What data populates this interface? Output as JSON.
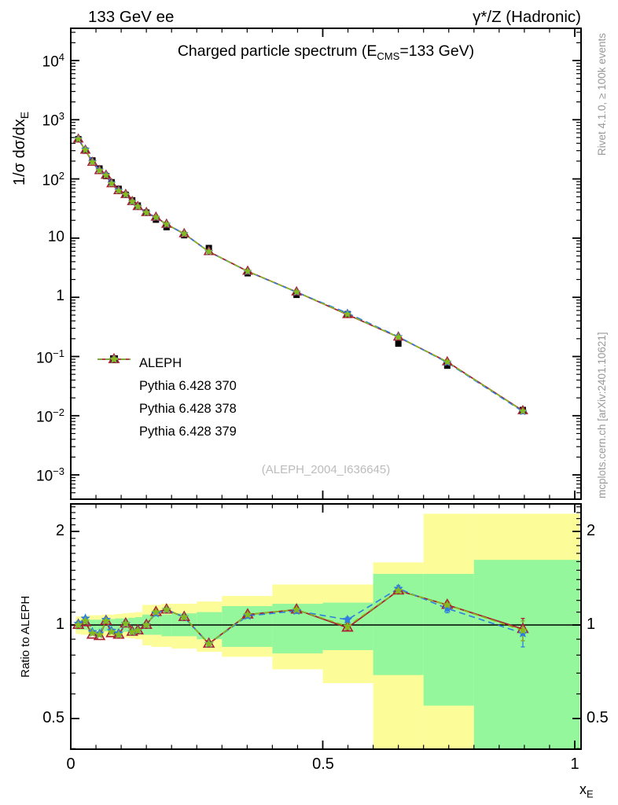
{
  "header": {
    "left": "133 GeV ee",
    "right": "γ*/Z (Hadronic)"
  },
  "titles": {
    "main_pre": "Charged particle spectrum (E",
    "main_sub": "CMS",
    "main_post": "=133 GeV)",
    "y_pre": "1/σ  dσ/dx",
    "y_sub": "E",
    "x_base": "x",
    "x_sub": "E",
    "ratio_axis": "Ratio to ALEPH"
  },
  "side_notes": {
    "top": "Rivet 4.1.0, ≥ 100k events",
    "bottom": "mcplots.cern.ch [arXiv:2401.10621]"
  },
  "watermark": "(ALEPH_2004_I636645)",
  "colors": {
    "aleph": "#000000",
    "pythia370": "#aa2233",
    "pythia378": "#2f7de0",
    "pythia379": "#85bb1d",
    "band_yellow": "#fcfc99",
    "band_green": "#95f79b",
    "frame": "#000000",
    "gray_text": "#999999",
    "watermark_text": "#bcbcbc"
  },
  "axes": {
    "main_y_ticks": [
      {
        "base": "10",
        "sup": "4",
        "v": 10000
      },
      {
        "base": "10",
        "sup": "3",
        "v": 1000
      },
      {
        "base": "10",
        "sup": "2",
        "v": 100
      },
      {
        "base": "10",
        "sup": "",
        "v": 10
      },
      {
        "base": "1",
        "sup": "",
        "v": 1
      },
      {
        "base": "10",
        "sup": "−1",
        "v": 0.1
      },
      {
        "base": "10",
        "sup": "−2",
        "v": 0.01
      },
      {
        "base": "10",
        "sup": "−3",
        "v": 0.001
      }
    ],
    "ratio_y_ticks": [
      {
        "label": "2",
        "v": 2
      },
      {
        "label": "1",
        "v": 1
      },
      {
        "label": "0.5",
        "v": 0.5
      }
    ],
    "x_ticks": [
      {
        "label": "0",
        "v": 0
      },
      {
        "label": "0.5",
        "v": 0.5
      },
      {
        "label": "1",
        "v": 1
      }
    ]
  },
  "chart_data": {
    "type": "line",
    "title": "Charged particle spectrum (E_CMS=133 GeV)",
    "xlabel": "x_E",
    "ylabel": "1/σ dσ/dx_E",
    "ratio_label": "Ratio to ALEPH",
    "xlim": [
      0,
      1.01
    ],
    "ylim_main_log": [
      0.0004,
      36000
    ],
    "ylim_ratio_log": [
      0.4,
      2.47
    ],
    "x": [
      0.015,
      0.029,
      0.043,
      0.057,
      0.07,
      0.081,
      0.095,
      0.109,
      0.122,
      0.133,
      0.15,
      0.169,
      0.19,
      0.225,
      0.274,
      0.351,
      0.448,
      0.549,
      0.65,
      0.747,
      0.897
    ],
    "series": [
      {
        "name": "ALEPH",
        "marker": "square",
        "line": "none",
        "color": "#000000",
        "values": [
          470,
          300,
          205,
          150,
          112,
          88,
          68,
          54,
          43.5,
          35.5,
          27,
          20.5,
          15.3,
          11.2,
          6.8,
          2.55,
          1.1,
          0.52,
          0.165,
          0.07,
          0.0125
        ],
        "err_rel": [
          0,
          0,
          0,
          0,
          0,
          0,
          0,
          0,
          0,
          0,
          0,
          0,
          0,
          0,
          0,
          0.02,
          0.03,
          0.04,
          0.05,
          0.07,
          0.1
        ]
      },
      {
        "name": "Pythia 6.428 370",
        "marker": "triangle-open",
        "line": "solid",
        "color": "#aa2233",
        "ratio": [
          1.0,
          1.02,
          0.93,
          0.92,
          1.03,
          0.94,
          0.93,
          1.01,
          0.95,
          0.96,
          1.0,
          1.1,
          1.12,
          1.06,
          0.87,
          1.08,
          1.12,
          0.98,
          1.29,
          1.16,
          0.97
        ],
        "ratio_err": [
          0,
          0,
          0,
          0,
          0,
          0,
          0,
          0,
          0,
          0,
          0,
          0,
          0,
          0,
          0,
          0.015,
          0.02,
          0.02,
          0.03,
          0.03,
          0.08
        ]
      },
      {
        "name": "Pythia 6.428 378",
        "marker": "star",
        "line": "dashed",
        "color": "#2f7de0",
        "ratio": [
          1.01,
          1.05,
          0.95,
          0.94,
          1.04,
          0.96,
          0.94,
          1.01,
          0.95,
          0.96,
          1.0,
          1.09,
          1.12,
          1.06,
          0.87,
          1.07,
          1.11,
          1.04,
          1.31,
          1.13,
          0.94
        ],
        "ratio_err": [
          0,
          0,
          0,
          0,
          0,
          0,
          0,
          0,
          0,
          0,
          0,
          0,
          0,
          0,
          0,
          0.015,
          0.02,
          0.02,
          0.03,
          0.035,
          0.09
        ]
      },
      {
        "name": "Pythia 6.428 379",
        "marker": "star",
        "line": "dashed",
        "color": "#85bb1d",
        "ratio": [
          1.0,
          1.03,
          0.94,
          0.93,
          1.03,
          0.95,
          0.93,
          1.01,
          0.95,
          0.96,
          1.0,
          1.1,
          1.12,
          1.06,
          0.87,
          1.08,
          1.12,
          0.99,
          1.29,
          1.16,
          0.96
        ],
        "ratio_err": [
          0,
          0,
          0,
          0,
          0,
          0,
          0,
          0,
          0,
          0,
          0,
          0,
          0,
          0,
          0,
          0.015,
          0.02,
          0.02,
          0.03,
          0.03,
          0.07
        ]
      }
    ],
    "bands": {
      "yellow": [
        [
          0.01,
          0.02,
          0.935,
          1.065
        ],
        [
          0.02,
          0.035,
          0.93,
          1.07
        ],
        [
          0.035,
          0.05,
          0.93,
          1.075
        ],
        [
          0.05,
          0.064,
          0.925,
          1.075
        ],
        [
          0.064,
          0.076,
          0.92,
          1.08
        ],
        [
          0.076,
          0.088,
          0.92,
          1.08
        ],
        [
          0.088,
          0.102,
          0.915,
          1.085
        ],
        [
          0.102,
          0.115,
          0.91,
          1.09
        ],
        [
          0.115,
          0.128,
          0.905,
          1.095
        ],
        [
          0.128,
          0.142,
          0.9,
          1.1
        ],
        [
          0.142,
          0.16,
          0.86,
          1.16
        ],
        [
          0.16,
          0.18,
          0.85,
          1.16
        ],
        [
          0.18,
          0.2,
          0.85,
          1.17
        ],
        [
          0.2,
          0.25,
          0.84,
          1.17
        ],
        [
          0.25,
          0.3,
          0.82,
          1.19
        ],
        [
          0.3,
          0.4,
          0.79,
          1.24
        ],
        [
          0.4,
          0.5,
          0.72,
          1.35
        ],
        [
          0.5,
          0.6,
          0.65,
          1.35
        ],
        [
          0.6,
          0.7,
          0.4,
          1.59
        ],
        [
          0.7,
          0.8,
          0.4,
          2.28
        ],
        [
          0.8,
          1.01,
          0.4,
          2.28
        ]
      ],
      "green": [
        [
          0.01,
          0.02,
          0.965,
          1.035
        ],
        [
          0.02,
          0.035,
          0.965,
          1.035
        ],
        [
          0.035,
          0.05,
          0.96,
          1.04
        ],
        [
          0.05,
          0.064,
          0.96,
          1.04
        ],
        [
          0.064,
          0.076,
          0.955,
          1.045
        ],
        [
          0.076,
          0.088,
          0.955,
          1.045
        ],
        [
          0.088,
          0.102,
          0.95,
          1.05
        ],
        [
          0.102,
          0.115,
          0.95,
          1.05
        ],
        [
          0.115,
          0.128,
          0.945,
          1.055
        ],
        [
          0.128,
          0.142,
          0.94,
          1.06
        ],
        [
          0.142,
          0.16,
          0.93,
          1.08
        ],
        [
          0.16,
          0.18,
          0.93,
          1.08
        ],
        [
          0.18,
          0.2,
          0.92,
          1.08
        ],
        [
          0.2,
          0.25,
          0.92,
          1.09
        ],
        [
          0.25,
          0.3,
          0.9,
          1.1
        ],
        [
          0.3,
          0.4,
          0.85,
          1.15
        ],
        [
          0.4,
          0.5,
          0.81,
          1.17
        ],
        [
          0.5,
          0.6,
          0.83,
          1.18
        ],
        [
          0.6,
          0.7,
          0.69,
          1.46
        ],
        [
          0.7,
          0.8,
          0.55,
          1.46
        ],
        [
          0.8,
          1.01,
          0.4,
          1.62
        ]
      ]
    }
  }
}
